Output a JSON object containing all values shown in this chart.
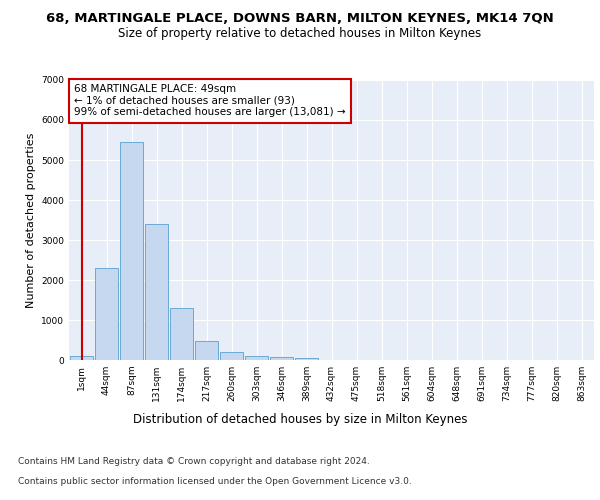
{
  "title": "68, MARTINGALE PLACE, DOWNS BARN, MILTON KEYNES, MK14 7QN",
  "subtitle": "Size of property relative to detached houses in Milton Keynes",
  "xlabel": "Distribution of detached houses by size in Milton Keynes",
  "ylabel": "Number of detached properties",
  "footer_line1": "Contains HM Land Registry data © Crown copyright and database right 2024.",
  "footer_line2": "Contains public sector information licensed under the Open Government Licence v3.0.",
  "annotation_line1": "68 MARTINGALE PLACE: 49sqm",
  "annotation_line2": "← 1% of detached houses are smaller (93)",
  "annotation_line3": "99% of semi-detached houses are larger (13,081) →",
  "bar_labels": [
    "1sqm",
    "44sqm",
    "87sqm",
    "131sqm",
    "174sqm",
    "217sqm",
    "260sqm",
    "303sqm",
    "346sqm",
    "389sqm",
    "432sqm",
    "475sqm",
    "518sqm",
    "561sqm",
    "604sqm",
    "648sqm",
    "691sqm",
    "734sqm",
    "777sqm",
    "820sqm",
    "863sqm"
  ],
  "bar_values": [
    100,
    2300,
    5450,
    3400,
    1300,
    480,
    200,
    100,
    80,
    50,
    10,
    2,
    0,
    0,
    0,
    0,
    0,
    0,
    0,
    0,
    0
  ],
  "bar_color": "#c5d8f0",
  "bar_edge_color": "#6aaad4",
  "vline_color": "#cc0000",
  "annotation_box_color": "#cc0000",
  "ylim": [
    0,
    7000
  ],
  "yticks": [
    0,
    1000,
    2000,
    3000,
    4000,
    5000,
    6000,
    7000
  ],
  "plot_bg_color": "#e8eef8",
  "grid_color": "#ffffff",
  "fig_bg_color": "#ffffff",
  "title_fontsize": 9.5,
  "subtitle_fontsize": 8.5,
  "annotation_fontsize": 7.5,
  "ylabel_fontsize": 8,
  "xlabel_fontsize": 8.5,
  "tick_fontsize": 6.5,
  "footer_fontsize": 6.5
}
